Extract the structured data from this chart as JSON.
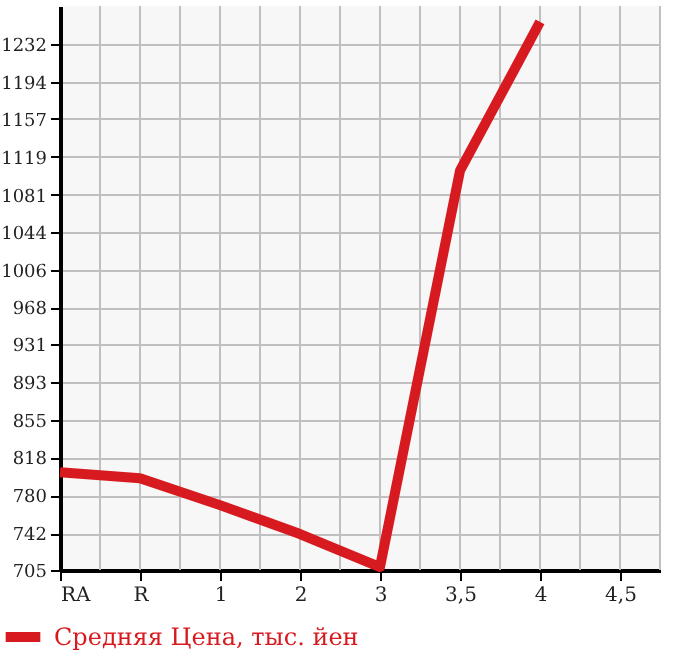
{
  "chart_data": {
    "type": "line",
    "categories": [
      "RA",
      "R",
      "1",
      "2",
      "3",
      "3,5",
      "4",
      "4,5"
    ],
    "series": [
      {
        "name": "Средняя Цена, тыс. йен",
        "color": "#d71a1f",
        "values": [
          803,
          797,
          770,
          741,
          708,
          1105,
          1254,
          null
        ]
      }
    ],
    "ylim": [
      705,
      1270
    ],
    "yticks": [
      705,
      742,
      780,
      818,
      855,
      893,
      931,
      968,
      1006,
      1044,
      1081,
      1119,
      1157,
      1194,
      1232
    ],
    "grid": true,
    "legend": "bottom left",
    "marker": "none",
    "line_style": "solid"
  }
}
